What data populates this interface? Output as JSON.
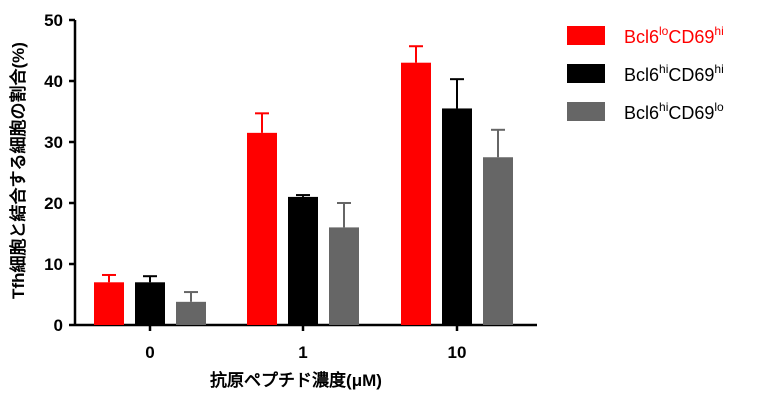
{
  "chart_data": {
    "type": "bar",
    "xlabel": "抗原ペプチド濃度(μM)",
    "ylabel": "Tfh細胞と結合する細胞の割合(%)",
    "ylim": [
      0,
      50
    ],
    "yticks": [
      "0",
      "10",
      "20",
      "30",
      "40",
      "50"
    ],
    "categories": [
      "0",
      "1",
      "10"
    ],
    "error_bars": "upper",
    "legend_position": "top-right",
    "series": [
      {
        "name_parts": [
          "Bcl6",
          "lo",
          "CD69",
          "hi"
        ],
        "color": "#ff0000",
        "label_color": "#ff0000",
        "values": [
          7.0,
          31.5,
          43.0
        ],
        "errors": [
          1.2,
          3.2,
          2.7
        ]
      },
      {
        "name_parts": [
          "Bcl6",
          "hi",
          "CD69",
          "hi"
        ],
        "color": "#000000",
        "label_color": "#000000",
        "values": [
          7.0,
          21.0,
          35.5
        ],
        "errors": [
          1.0,
          0.3,
          4.8
        ]
      },
      {
        "name_parts": [
          "Bcl6",
          "hi",
          "CD69",
          "lo"
        ],
        "color": "#666666",
        "label_color": "#000000",
        "values": [
          3.8,
          16.0,
          27.5
        ],
        "errors": [
          1.6,
          4.0,
          4.5
        ]
      }
    ]
  }
}
